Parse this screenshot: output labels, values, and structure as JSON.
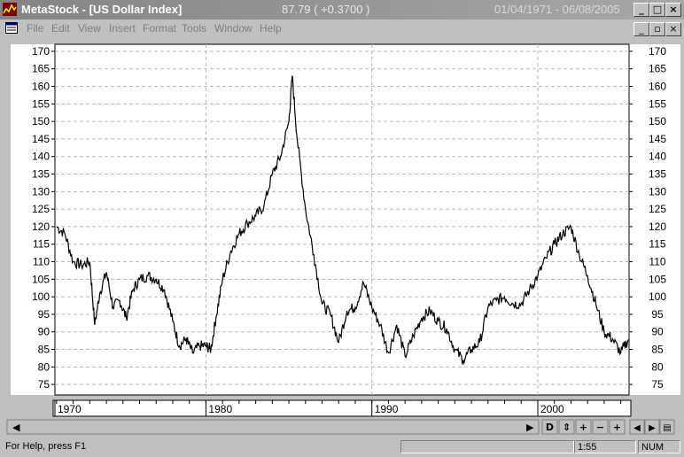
{
  "window": {
    "title": "MetaStock - [US Dollar Index]",
    "quote": "87.79 ( +0.3700 )",
    "date_range": "01/04/1971 - 06/08/2005",
    "minimize": "_",
    "maximize": "□",
    "close": "×",
    "doc_restore": "▫"
  },
  "menu": {
    "items": [
      {
        "label": "File"
      },
      {
        "label": "Edit"
      },
      {
        "label": "View"
      },
      {
        "label": "Insert"
      },
      {
        "label": "Format"
      },
      {
        "label": "Tools"
      },
      {
        "label": "Window"
      },
      {
        "label": "Help"
      }
    ]
  },
  "toolbar_bottom": {
    "period": "D",
    "buttons": [
      "⇕",
      "+",
      "−",
      "+"
    ],
    "nav": [
      "◀",
      "▶",
      "▤"
    ]
  },
  "status": {
    "help": "For Help, press F1",
    "time": "1:55",
    "num": "NUM"
  },
  "colors": {
    "line": "#000000",
    "grid": "#b8b8b8",
    "plot_bg": "#ffffff",
    "frame": "#c0c0c0"
  },
  "chart_data": {
    "type": "line",
    "title": "",
    "xlabel": "",
    "ylabel": "",
    "x_tick_labels": [
      "1970",
      "1980",
      "1990",
      "2000"
    ],
    "y_ticks": [
      75,
      80,
      85,
      90,
      95,
      100,
      105,
      110,
      115,
      120,
      125,
      130,
      135,
      140,
      145,
      150,
      155,
      160,
      165,
      170
    ],
    "ylim": [
      72,
      172
    ],
    "xlim": [
      1970.9,
      2005.5
    ],
    "grid": true,
    "series": [
      {
        "x": [
          1971.0,
          1971.5,
          1972.0,
          1972.5,
          1973.0,
          1973.3,
          1973.6,
          1974.0,
          1974.4,
          1974.8,
          1975.2,
          1975.6,
          1976.0,
          1976.5,
          1977.0,
          1977.5,
          1978.0,
          1978.4,
          1978.8,
          1979.2,
          1979.6,
          1980.0,
          1980.3,
          1980.6,
          1981.0,
          1981.5,
          1982.0,
          1982.5,
          1983.0,
          1983.5,
          1984.0,
          1984.5,
          1985.0,
          1985.2,
          1985.5,
          1986.0,
          1986.5,
          1987.0,
          1987.5,
          1988.0,
          1988.5,
          1989.0,
          1989.5,
          1990.0,
          1990.5,
          1991.0,
          1991.5,
          1992.0,
          1992.5,
          1993.0,
          1993.5,
          1994.0,
          1994.5,
          1995.0,
          1995.5,
          1996.0,
          1996.5,
          1997.0,
          1997.5,
          1998.0,
          1998.5,
          1999.0,
          1999.5,
          2000.0,
          2000.5,
          2001.0,
          2001.5,
          2002.0,
          2002.5,
          2003.0,
          2003.5,
          2004.0,
          2004.5,
          2005.0,
          2005.45
        ],
        "y": [
          120,
          118,
          110,
          109,
          110,
          92,
          101,
          107,
          97,
          99,
          94,
          102,
          105,
          106,
          105,
          102,
          93,
          86,
          88,
          84,
          86,
          86,
          85,
          94,
          105,
          113,
          118,
          121,
          123,
          126,
          135,
          140,
          150,
          163,
          145,
          125,
          112,
          98,
          95,
          87,
          96,
          97,
          104,
          97,
          92,
          84,
          92,
          83,
          89,
          94,
          96,
          93,
          91,
          85,
          82,
          85,
          87,
          97,
          99,
          100,
          98,
          98,
          102,
          106,
          111,
          115,
          118,
          120,
          112,
          106,
          98,
          90,
          88,
          84,
          87.8
        ]
      }
    ]
  }
}
